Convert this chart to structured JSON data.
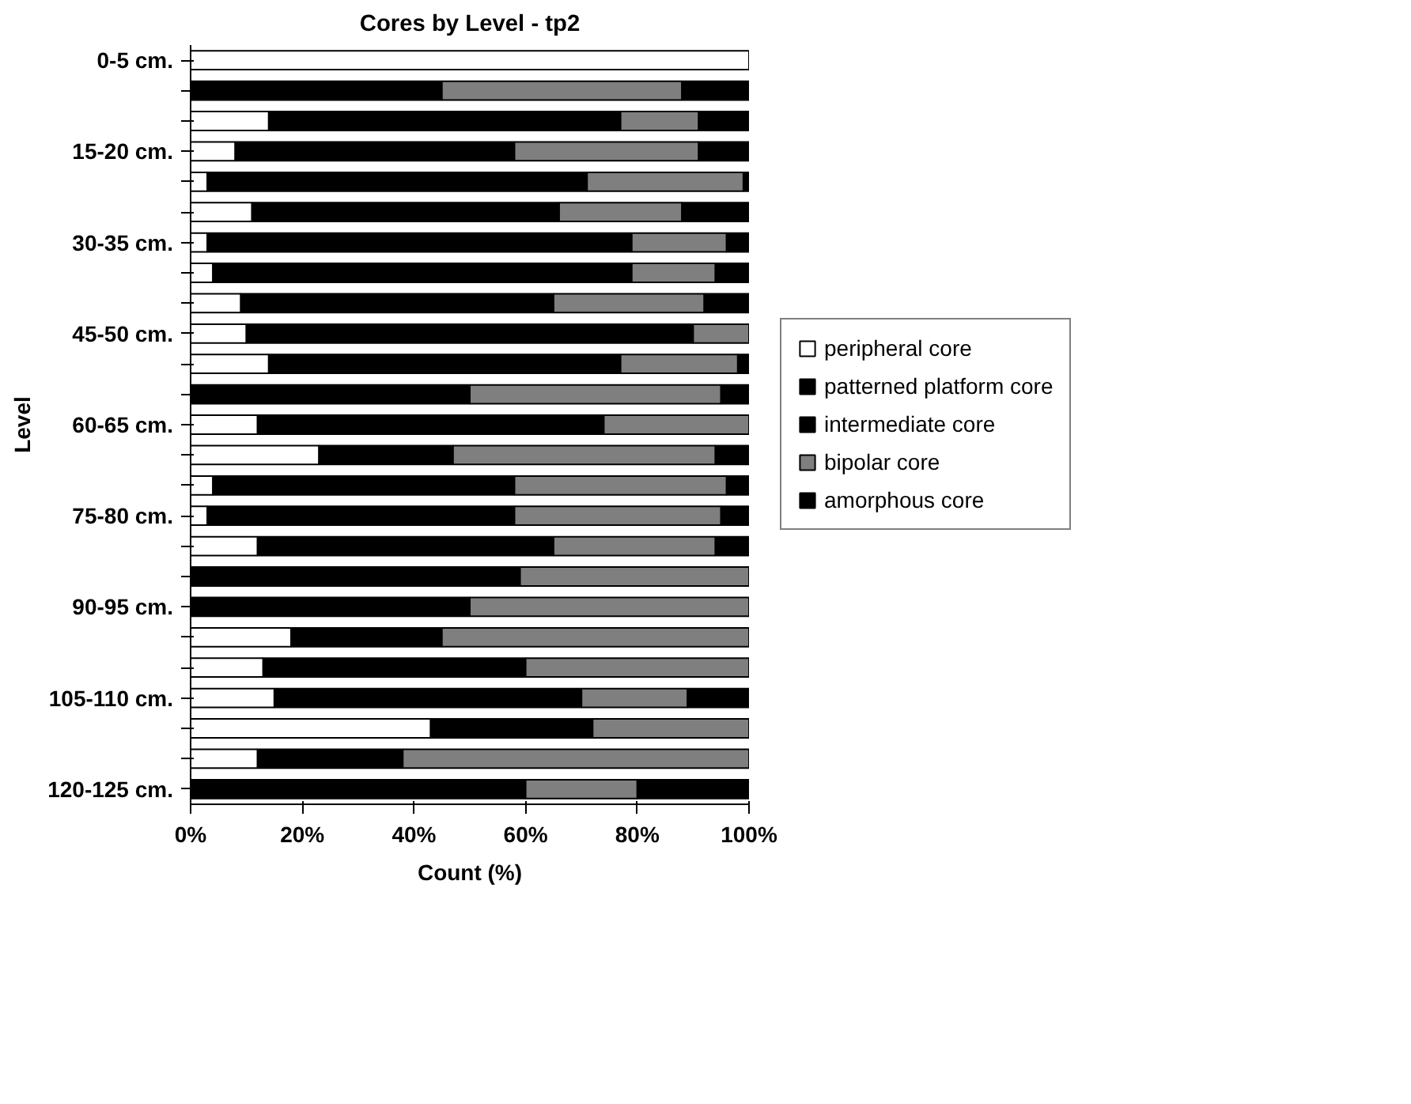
{
  "chart_data": {
    "type": "bar",
    "orientation": "horizontal",
    "stacked": true,
    "title": "Cores by Level - tp2",
    "xlabel": "Count (%)",
    "ylabel": "Level",
    "categories": [
      "0-5 cm.",
      null,
      null,
      "15-20 cm.",
      null,
      null,
      "30-35 cm.",
      null,
      null,
      "45-50 cm.",
      null,
      null,
      "60-65 cm.",
      null,
      null,
      "75-80 cm.",
      null,
      null,
      "90-95 cm.",
      null,
      null,
      "105-110 cm.",
      null,
      null,
      "120-125 cm."
    ],
    "series": [
      {
        "name": "peripheral core",
        "color": "#ffffff",
        "values": [
          100,
          0,
          14,
          8,
          3,
          11,
          3,
          4,
          9,
          10,
          14,
          0,
          12,
          23,
          4,
          3,
          12,
          0,
          0,
          18,
          13,
          15,
          43,
          12,
          0
        ]
      },
      {
        "name": "patterned platform core",
        "color": "#000000",
        "values": [
          0,
          45,
          63,
          50,
          68,
          55,
          76,
          75,
          56,
          80,
          63,
          50,
          62,
          24,
          54,
          55,
          53,
          59,
          50,
          27,
          47,
          55,
          29,
          26,
          60
        ]
      },
      {
        "name": "intermediate core",
        "color": "#000000",
        "values": [
          0,
          0,
          0,
          0,
          0,
          0,
          0,
          0,
          0,
          0,
          0,
          0,
          0,
          0,
          0,
          0,
          0,
          0,
          0,
          0,
          0,
          0,
          0,
          0,
          0
        ]
      },
      {
        "name": "bipolar core",
        "color": "#7f7f7f",
        "values": [
          0,
          43,
          14,
          33,
          28,
          22,
          17,
          15,
          27,
          10,
          21,
          45,
          26,
          47,
          38,
          37,
          29,
          41,
          50,
          55,
          40,
          19,
          28,
          62,
          20
        ]
      },
      {
        "name": "amorphous core",
        "color": "#000000",
        "values": [
          0,
          12,
          9,
          9,
          1,
          12,
          4,
          6,
          8,
          0,
          2,
          5,
          0,
          6,
          4,
          5,
          6,
          0,
          0,
          0,
          0,
          11,
          0,
          0,
          20
        ]
      }
    ],
    "xlim": [
      0,
      100
    ],
    "xticks": [
      {
        "value": 0,
        "label": "0%"
      },
      {
        "value": 20,
        "label": "20%"
      },
      {
        "value": 40,
        "label": "40%"
      },
      {
        "value": 60,
        "label": "60%"
      },
      {
        "value": 80,
        "label": "80%"
      },
      {
        "value": 100,
        "label": "100%"
      }
    ],
    "grid": false,
    "legend": "right"
  }
}
